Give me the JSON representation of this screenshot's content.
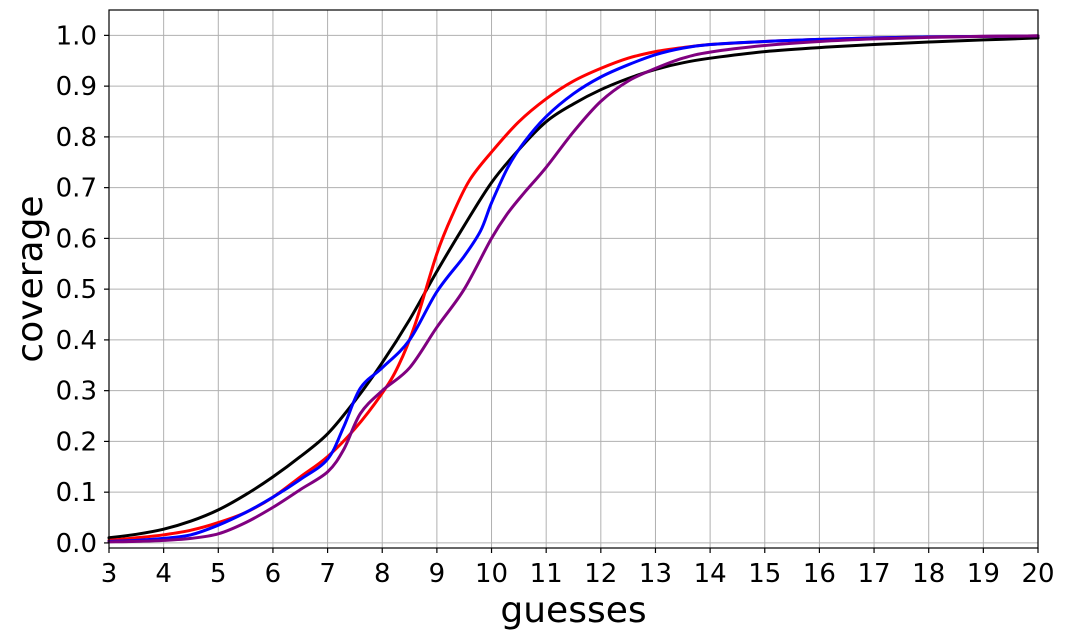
{
  "chart_data": {
    "type": "line",
    "title": "",
    "xlabel": "guesses",
    "ylabel": "coverage",
    "xlim": [
      3,
      20
    ],
    "ylim": [
      -0.01,
      1.05
    ],
    "grid": true,
    "x_ticks": [
      "3",
      "4",
      "5",
      "6",
      "7",
      "8",
      "9",
      "10",
      "11",
      "12",
      "13",
      "14",
      "15",
      "16",
      "17",
      "18",
      "19",
      "20"
    ],
    "y_ticks": [
      "0.0",
      "0.1",
      "0.2",
      "0.3",
      "0.4",
      "0.5",
      "0.6",
      "0.7",
      "0.8",
      "0.9",
      "1.0"
    ],
    "series": [
      {
        "color": "#000000",
        "x": [
          3,
          3.5,
          4,
          4.5,
          5,
          5.5,
          6,
          6.5,
          7,
          7.5,
          8,
          8.5,
          9,
          9.5,
          10,
          10.5,
          11,
          11.5,
          12,
          12.5,
          13,
          13.5,
          14,
          15,
          16,
          17,
          18,
          19,
          20
        ],
        "y": [
          0.01,
          0.017,
          0.027,
          0.043,
          0.065,
          0.095,
          0.13,
          0.17,
          0.215,
          0.28,
          0.355,
          0.44,
          0.535,
          0.625,
          0.71,
          0.775,
          0.83,
          0.865,
          0.893,
          0.915,
          0.933,
          0.946,
          0.955,
          0.968,
          0.976,
          0.982,
          0.987,
          0.991,
          0.995
        ]
      },
      {
        "color": "#ff0000",
        "x": [
          3,
          3.5,
          4,
          4.5,
          5,
          5.5,
          6,
          6.5,
          7,
          7.5,
          8,
          8.3,
          8.6,
          9,
          9.3,
          9.6,
          10,
          10.5,
          11,
          11.5,
          12,
          12.5,
          13,
          13.5,
          14,
          15,
          16,
          17,
          18,
          19,
          20
        ],
        "y": [
          0.005,
          0.01,
          0.016,
          0.025,
          0.04,
          0.06,
          0.09,
          0.13,
          0.17,
          0.225,
          0.295,
          0.35,
          0.43,
          0.57,
          0.65,
          0.715,
          0.77,
          0.83,
          0.875,
          0.91,
          0.935,
          0.955,
          0.968,
          0.976,
          0.982,
          0.988,
          0.992,
          0.995,
          0.997,
          0.998,
          0.999
        ]
      },
      {
        "color": "#0000ff",
        "x": [
          3,
          3.5,
          4,
          4.5,
          5,
          5.5,
          6,
          6.5,
          7,
          7.3,
          7.6,
          8,
          8.5,
          9,
          9.5,
          9.8,
          10,
          10.3,
          10.6,
          11,
          11.5,
          12,
          12.5,
          13,
          13.5,
          14,
          15,
          16,
          17,
          18,
          19,
          20
        ],
        "y": [
          0.003,
          0.005,
          0.009,
          0.016,
          0.035,
          0.06,
          0.09,
          0.125,
          0.165,
          0.23,
          0.305,
          0.345,
          0.4,
          0.495,
          0.565,
          0.615,
          0.67,
          0.74,
          0.79,
          0.84,
          0.885,
          0.918,
          0.942,
          0.962,
          0.975,
          0.982,
          0.988,
          0.992,
          0.995,
          0.997,
          0.998,
          0.999
        ]
      },
      {
        "color": "#800080",
        "x": [
          3,
          3.5,
          4,
          4.5,
          5,
          5.5,
          6,
          6.5,
          7,
          7.3,
          7.6,
          8,
          8.5,
          9,
          9.5,
          10,
          10.3,
          10.6,
          11,
          11.5,
          12,
          12.5,
          13,
          13.5,
          14,
          15,
          16,
          17,
          18,
          19,
          20
        ],
        "y": [
          0.002,
          0.003,
          0.005,
          0.009,
          0.018,
          0.04,
          0.07,
          0.105,
          0.14,
          0.185,
          0.255,
          0.3,
          0.345,
          0.425,
          0.5,
          0.6,
          0.65,
          0.69,
          0.74,
          0.81,
          0.87,
          0.91,
          0.935,
          0.955,
          0.967,
          0.98,
          0.988,
          0.993,
          0.996,
          0.998,
          0.999
        ]
      }
    ]
  }
}
